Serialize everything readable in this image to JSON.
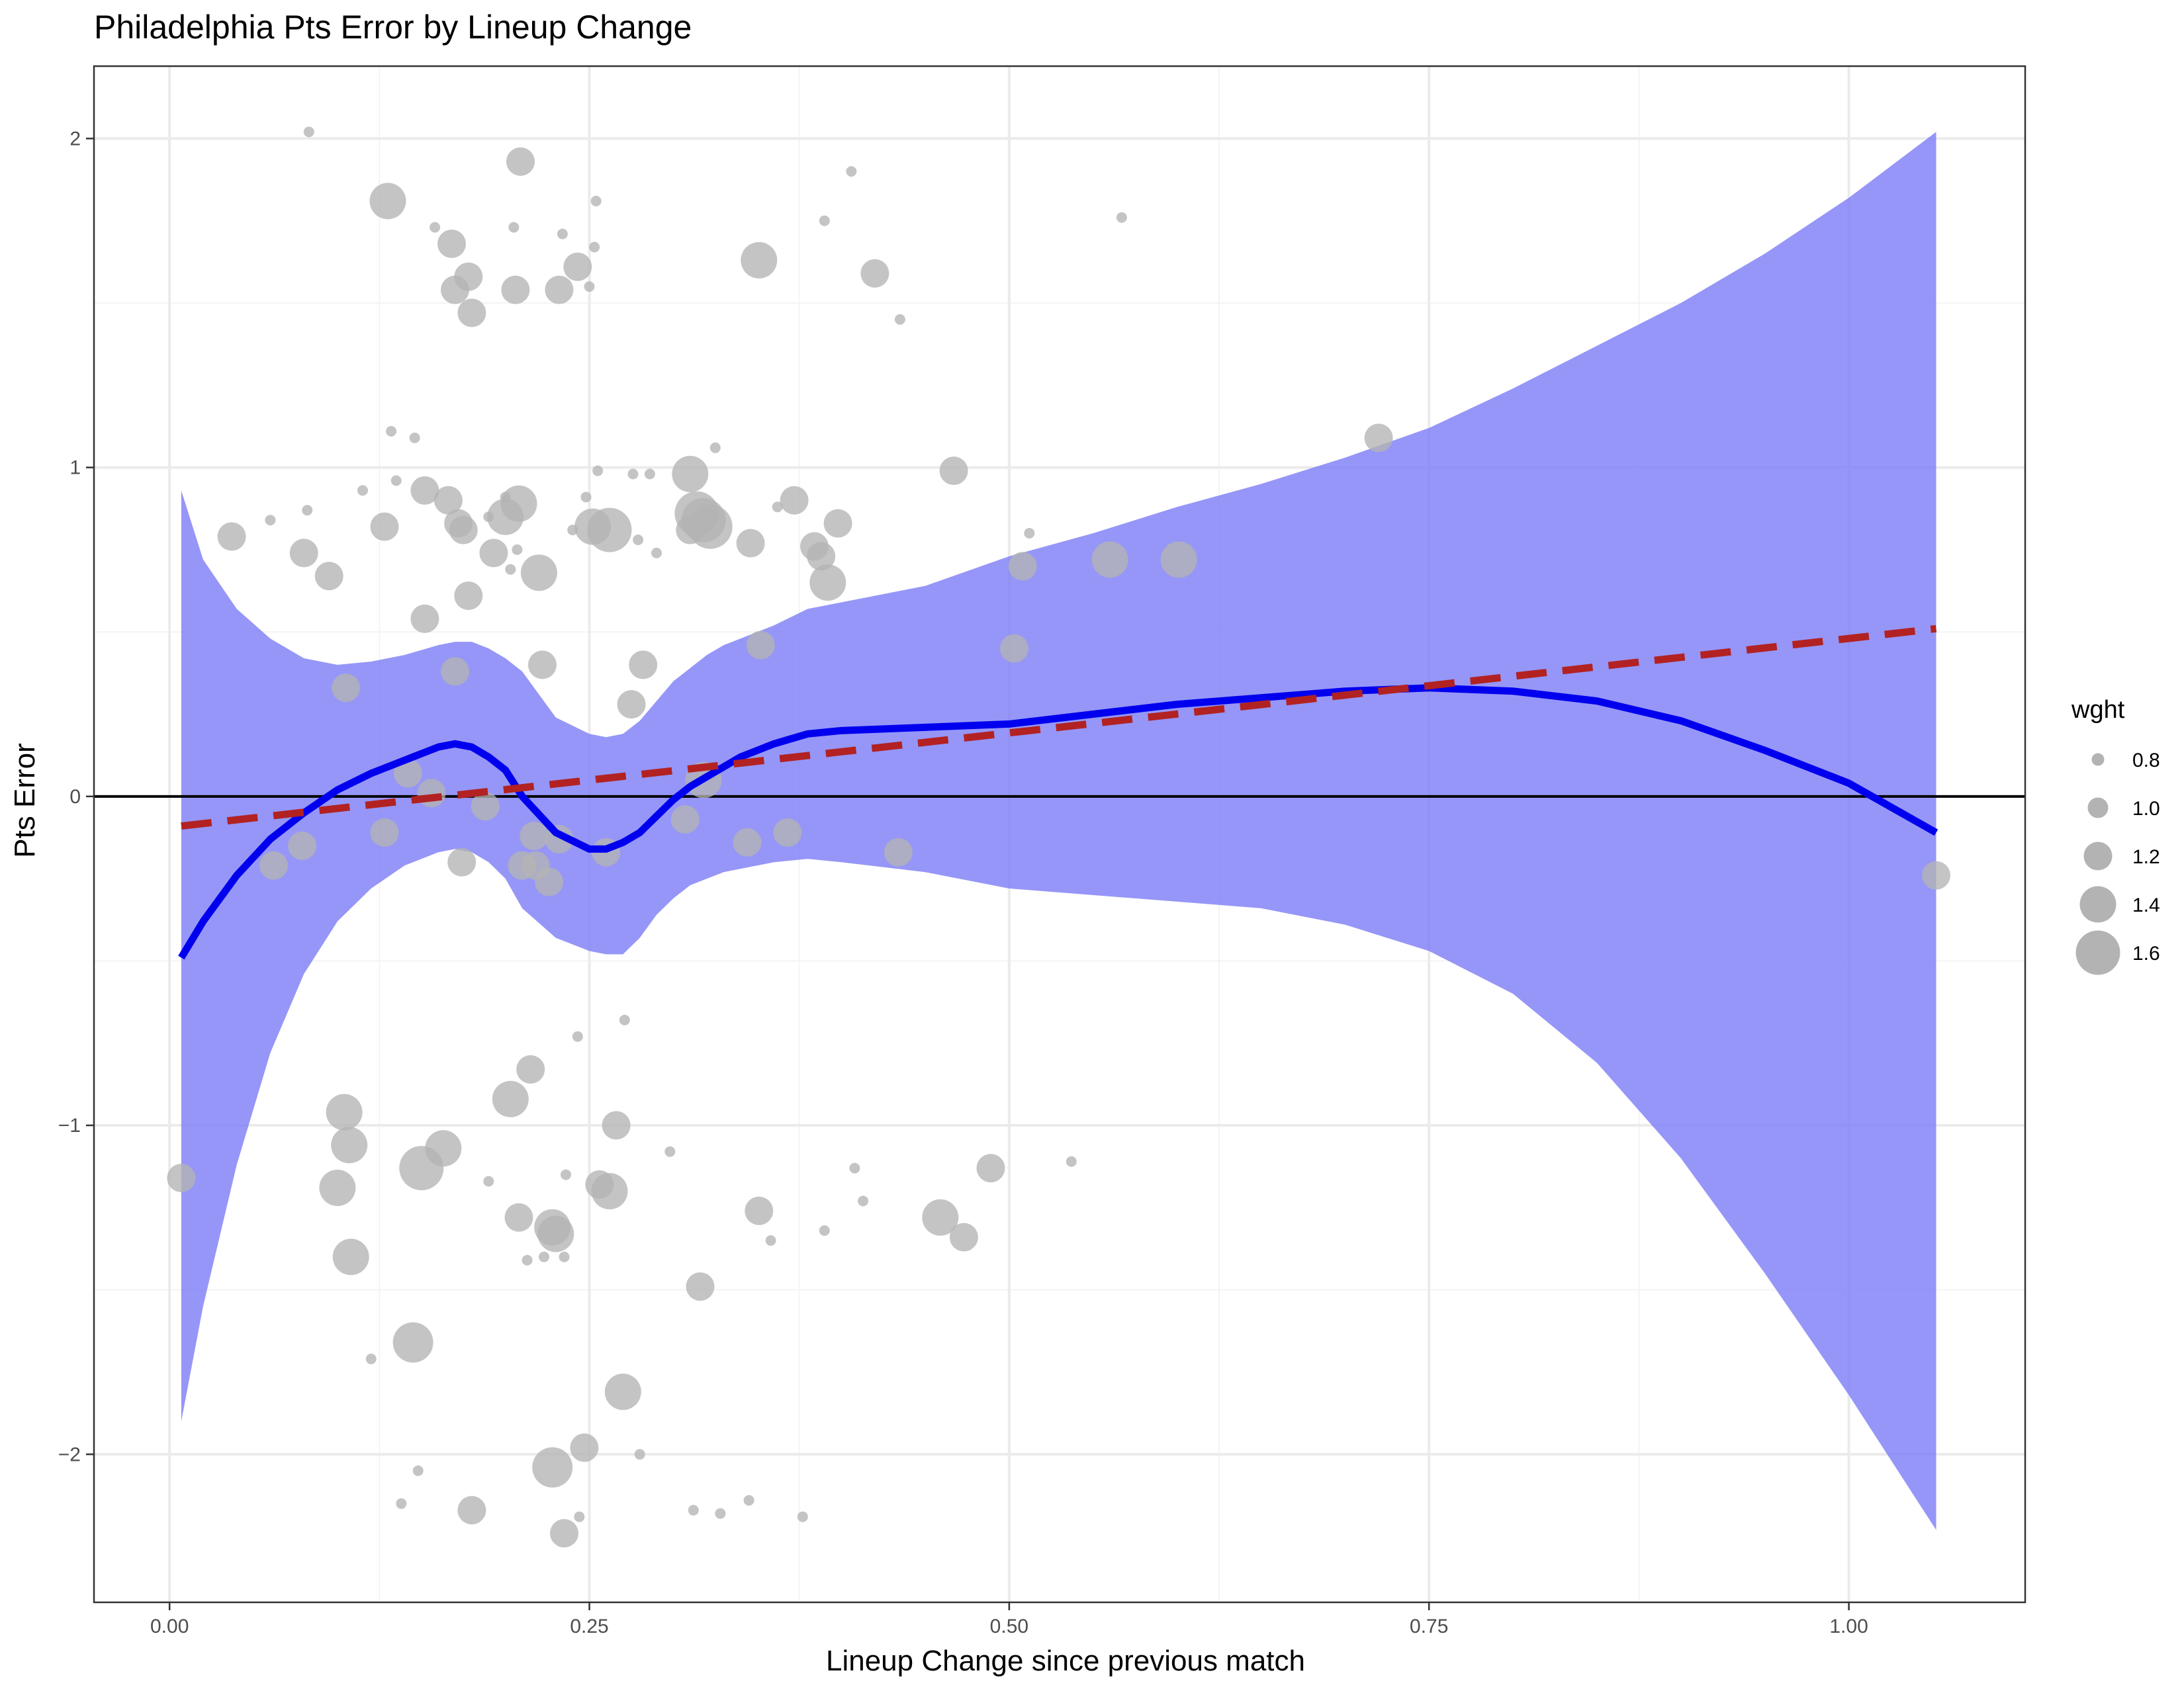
{
  "chart_data": {
    "type": "scatter",
    "title": "Philadelphia Pts Error by Lineup Change",
    "xlabel": "Lineup Change since previous match",
    "ylabel": "Pts Error",
    "xlim": [
      -0.045,
      1.105
    ],
    "ylim": [
      -2.45,
      2.22
    ],
    "x_ticks": [
      0.0,
      0.25,
      0.5,
      0.75,
      1.0
    ],
    "x_tick_labels": [
      "0.00",
      "0.25",
      "0.50",
      "0.75",
      "1.00"
    ],
    "y_ticks": [
      -2,
      -1,
      0,
      1,
      2
    ],
    "y_tick_labels": [
      "−2",
      "−1",
      "0",
      "1",
      "2"
    ],
    "grid": true,
    "reference_line_y": 0,
    "legend": {
      "title": "wght",
      "position": "right",
      "entries": [
        {
          "label": "0.8",
          "size": 0.8
        },
        {
          "label": "1.0",
          "size": 1.0
        },
        {
          "label": "1.2",
          "size": 1.2
        },
        {
          "label": "1.4",
          "size": 1.4
        },
        {
          "label": "1.6",
          "size": 1.6
        }
      ]
    },
    "colors": {
      "points": "#b3b3b3",
      "smooth_line": "#0000ee",
      "confidence_band": "#7878f6",
      "linear_fit": "#b22222",
      "zero_line": "#000000",
      "grid_major": "#ebebeb",
      "grid_minor": "#f4f4f4"
    },
    "points": [
      {
        "x": 0.007,
        "y": -1.16,
        "w": 1.2
      },
      {
        "x": 0.037,
        "y": 0.79,
        "w": 1.2
      },
      {
        "x": 0.062,
        "y": -0.21,
        "w": 1.2
      },
      {
        "x": 0.06,
        "y": 0.84,
        "w": 0.75
      },
      {
        "x": 0.08,
        "y": 0.74,
        "w": 1.2
      },
      {
        "x": 0.082,
        "y": 0.87,
        "w": 0.75
      },
      {
        "x": 0.083,
        "y": 2.02,
        "w": 0.75
      },
      {
        "x": 0.079,
        "y": -0.15,
        "w": 1.2
      },
      {
        "x": 0.095,
        "y": 0.67,
        "w": 1.2
      },
      {
        "x": 0.1,
        "y": -1.19,
        "w": 1.4
      },
      {
        "x": 0.104,
        "y": -0.96,
        "w": 1.4
      },
      {
        "x": 0.105,
        "y": 0.33,
        "w": 1.2
      },
      {
        "x": 0.107,
        "y": -1.06,
        "w": 1.4
      },
      {
        "x": 0.108,
        "y": -1.4,
        "w": 1.4
      },
      {
        "x": 0.115,
        "y": 0.93,
        "w": 0.75
      },
      {
        "x": 0.12,
        "y": -1.71,
        "w": 0.75
      },
      {
        "x": 0.128,
        "y": -0.11,
        "w": 1.2
      },
      {
        "x": 0.128,
        "y": 0.82,
        "w": 1.2
      },
      {
        "x": 0.13,
        "y": 1.81,
        "w": 1.4
      },
      {
        "x": 0.132,
        "y": 1.11,
        "w": 0.75
      },
      {
        "x": 0.135,
        "y": 0.96,
        "w": 0.75
      },
      {
        "x": 0.138,
        "y": -2.15,
        "w": 0.75
      },
      {
        "x": 0.142,
        "y": 0.07,
        "w": 1.2
      },
      {
        "x": 0.145,
        "y": -1.66,
        "w": 1.5
      },
      {
        "x": 0.146,
        "y": 1.09,
        "w": 0.75
      },
      {
        "x": 0.148,
        "y": -2.05,
        "w": 0.75
      },
      {
        "x": 0.15,
        "y": -1.13,
        "w": 1.6
      },
      {
        "x": 0.152,
        "y": 0.93,
        "w": 1.2
      },
      {
        "x": 0.152,
        "y": 0.54,
        "w": 1.2
      },
      {
        "x": 0.156,
        "y": 0.01,
        "w": 1.2
      },
      {
        "x": 0.158,
        "y": 1.73,
        "w": 0.75
      },
      {
        "x": 0.163,
        "y": -1.07,
        "w": 1.4
      },
      {
        "x": 0.166,
        "y": 0.9,
        "w": 1.2
      },
      {
        "x": 0.168,
        "y": 1.68,
        "w": 1.2
      },
      {
        "x": 0.17,
        "y": 1.54,
        "w": 1.2
      },
      {
        "x": 0.17,
        "y": 0.38,
        "w": 1.2
      },
      {
        "x": 0.172,
        "y": 0.83,
        "w": 1.2
      },
      {
        "x": 0.174,
        "y": -0.2,
        "w": 1.2
      },
      {
        "x": 0.175,
        "y": 0.81,
        "w": 1.2
      },
      {
        "x": 0.178,
        "y": 1.58,
        "w": 1.2
      },
      {
        "x": 0.178,
        "y": 0.61,
        "w": 1.2
      },
      {
        "x": 0.18,
        "y": 1.47,
        "w": 1.2
      },
      {
        "x": 0.18,
        "y": -2.17,
        "w": 1.2
      },
      {
        "x": 0.188,
        "y": -0.03,
        "w": 1.2
      },
      {
        "x": 0.19,
        "y": -1.17,
        "w": 0.75
      },
      {
        "x": 0.19,
        "y": 0.85,
        "w": 0.75
      },
      {
        "x": 0.193,
        "y": 0.74,
        "w": 1.2
      },
      {
        "x": 0.2,
        "y": 0.91,
        "w": 0.75
      },
      {
        "x": 0.2,
        "y": 0.85,
        "w": 1.4
      },
      {
        "x": 0.203,
        "y": -0.92,
        "w": 1.4
      },
      {
        "x": 0.203,
        "y": 0.69,
        "w": 0.75
      },
      {
        "x": 0.205,
        "y": 1.73,
        "w": 0.75
      },
      {
        "x": 0.206,
        "y": 1.54,
        "w": 1.2
      },
      {
        "x": 0.207,
        "y": 0.75,
        "w": 0.75
      },
      {
        "x": 0.208,
        "y": 0.89,
        "w": 1.4
      },
      {
        "x": 0.208,
        "y": -1.28,
        "w": 1.2
      },
      {
        "x": 0.21,
        "y": -0.21,
        "w": 1.2
      },
      {
        "x": 0.209,
        "y": 1.93,
        "w": 1.2
      },
      {
        "x": 0.213,
        "y": -1.41,
        "w": 0.75
      },
      {
        "x": 0.215,
        "y": -0.83,
        "w": 1.2
      },
      {
        "x": 0.217,
        "y": -0.12,
        "w": 1.2
      },
      {
        "x": 0.218,
        "y": -0.21,
        "w": 1.2
      },
      {
        "x": 0.22,
        "y": 0.68,
        "w": 1.4
      },
      {
        "x": 0.222,
        "y": 0.4,
        "w": 1.2
      },
      {
        "x": 0.223,
        "y": -1.4,
        "w": 0.75
      },
      {
        "x": 0.226,
        "y": -0.26,
        "w": 1.2
      },
      {
        "x": 0.228,
        "y": -2.04,
        "w": 1.5
      },
      {
        "x": 0.228,
        "y": -1.31,
        "w": 1.4
      },
      {
        "x": 0.23,
        "y": -1.33,
        "w": 1.4
      },
      {
        "x": 0.232,
        "y": 1.54,
        "w": 1.2
      },
      {
        "x": 0.232,
        "y": -0.13,
        "w": 1.2
      },
      {
        "x": 0.234,
        "y": 1.71,
        "w": 0.75
      },
      {
        "x": 0.235,
        "y": -1.4,
        "w": 0.75
      },
      {
        "x": 0.235,
        "y": -2.24,
        "w": 1.2
      },
      {
        "x": 0.236,
        "y": -1.15,
        "w": 0.75
      },
      {
        "x": 0.24,
        "y": 0.81,
        "w": 0.75
      },
      {
        "x": 0.243,
        "y": 1.61,
        "w": 1.2
      },
      {
        "x": 0.243,
        "y": -0.73,
        "w": 0.75
      },
      {
        "x": 0.244,
        "y": -2.19,
        "w": 0.75
      },
      {
        "x": 0.247,
        "y": -1.98,
        "w": 1.2
      },
      {
        "x": 0.248,
        "y": 0.91,
        "w": 0.75
      },
      {
        "x": 0.25,
        "y": 1.55,
        "w": 0.75
      },
      {
        "x": 0.252,
        "y": 0.82,
        "w": 1.4
      },
      {
        "x": 0.253,
        "y": 1.67,
        "w": 0.75
      },
      {
        "x": 0.254,
        "y": 1.81,
        "w": 0.75
      },
      {
        "x": 0.255,
        "y": 0.99,
        "w": 0.75
      },
      {
        "x": 0.256,
        "y": -1.18,
        "w": 1.2
      },
      {
        "x": 0.26,
        "y": -0.17,
        "w": 1.2
      },
      {
        "x": 0.262,
        "y": 0.81,
        "w": 1.6
      },
      {
        "x": 0.262,
        "y": -1.2,
        "w": 1.4
      },
      {
        "x": 0.266,
        "y": -1.0,
        "w": 1.2
      },
      {
        "x": 0.27,
        "y": -1.81,
        "w": 1.4
      },
      {
        "x": 0.271,
        "y": -0.68,
        "w": 0.75
      },
      {
        "x": 0.275,
        "y": 0.28,
        "w": 1.2
      },
      {
        "x": 0.276,
        "y": 0.98,
        "w": 0.75
      },
      {
        "x": 0.279,
        "y": 0.78,
        "w": 0.75
      },
      {
        "x": 0.28,
        "y": -2.0,
        "w": 0.75
      },
      {
        "x": 0.282,
        "y": 0.4,
        "w": 1.2
      },
      {
        "x": 0.286,
        "y": 0.98,
        "w": 0.75
      },
      {
        "x": 0.29,
        "y": 0.74,
        "w": 0.75
      },
      {
        "x": 0.298,
        "y": -1.08,
        "w": 0.75
      },
      {
        "x": 0.307,
        "y": -0.07,
        "w": 1.2
      },
      {
        "x": 0.31,
        "y": 0.98,
        "w": 1.4
      },
      {
        "x": 0.31,
        "y": 0.81,
        "w": 1.2
      },
      {
        "x": 0.312,
        "y": -2.17,
        "w": 0.75
      },
      {
        "x": 0.314,
        "y": 0.86,
        "w": 1.6
      },
      {
        "x": 0.316,
        "y": -1.49,
        "w": 1.2
      },
      {
        "x": 0.318,
        "y": 0.84,
        "w": 1.6
      },
      {
        "x": 0.318,
        "y": 0.05,
        "w": 1.4
      },
      {
        "x": 0.322,
        "y": 0.82,
        "w": 1.6
      },
      {
        "x": 0.325,
        "y": 1.06,
        "w": 0.75
      },
      {
        "x": 0.328,
        "y": -2.18,
        "w": 0.75
      },
      {
        "x": 0.344,
        "y": -0.14,
        "w": 1.2
      },
      {
        "x": 0.345,
        "y": -2.14,
        "w": 0.75
      },
      {
        "x": 0.346,
        "y": 0.77,
        "w": 1.2
      },
      {
        "x": 0.351,
        "y": -1.26,
        "w": 1.2
      },
      {
        "x": 0.352,
        "y": 0.46,
        "w": 1.2
      },
      {
        "x": 0.351,
        "y": 1.63,
        "w": 1.4
      },
      {
        "x": 0.358,
        "y": -1.35,
        "w": 0.75
      },
      {
        "x": 0.362,
        "y": 0.88,
        "w": 0.75
      },
      {
        "x": 0.368,
        "y": -0.11,
        "w": 1.2
      },
      {
        "x": 0.372,
        "y": 0.9,
        "w": 1.2
      },
      {
        "x": 0.377,
        "y": -2.19,
        "w": 0.75
      },
      {
        "x": 0.384,
        "y": 0.76,
        "w": 1.2
      },
      {
        "x": 0.388,
        "y": 0.73,
        "w": 1.2
      },
      {
        "x": 0.39,
        "y": -1.32,
        "w": 0.75
      },
      {
        "x": 0.39,
        "y": 1.75,
        "w": 0.75
      },
      {
        "x": 0.392,
        "y": 0.65,
        "w": 1.4
      },
      {
        "x": 0.398,
        "y": 0.83,
        "w": 1.2
      },
      {
        "x": 0.406,
        "y": 1.9,
        "w": 0.75
      },
      {
        "x": 0.408,
        "y": -1.13,
        "w": 0.75
      },
      {
        "x": 0.413,
        "y": -1.23,
        "w": 0.75
      },
      {
        "x": 0.42,
        "y": 1.59,
        "w": 1.2
      },
      {
        "x": 0.434,
        "y": -0.17,
        "w": 1.2
      },
      {
        "x": 0.435,
        "y": 1.45,
        "w": 0.75
      },
      {
        "x": 0.459,
        "y": -1.28,
        "w": 1.4
      },
      {
        "x": 0.467,
        "y": 0.99,
        "w": 1.2
      },
      {
        "x": 0.473,
        "y": -1.34,
        "w": 1.2
      },
      {
        "x": 0.489,
        "y": -1.13,
        "w": 1.2
      },
      {
        "x": 0.503,
        "y": 0.45,
        "w": 1.2
      },
      {
        "x": 0.508,
        "y": 0.7,
        "w": 1.2
      },
      {
        "x": 0.512,
        "y": 0.8,
        "w": 0.75
      },
      {
        "x": 0.537,
        "y": -1.11,
        "w": 0.75
      },
      {
        "x": 0.56,
        "y": 0.72,
        "w": 1.4
      },
      {
        "x": 0.567,
        "y": 1.76,
        "w": 0.75
      },
      {
        "x": 0.601,
        "y": 0.72,
        "w": 1.4
      },
      {
        "x": 0.72,
        "y": 1.09,
        "w": 1.2
      },
      {
        "x": 1.052,
        "y": -0.24,
        "w": 1.2
      }
    ],
    "smooth_fit": {
      "x": [
        0.007,
        0.02,
        0.04,
        0.06,
        0.08,
        0.1,
        0.12,
        0.14,
        0.16,
        0.17,
        0.18,
        0.19,
        0.2,
        0.21,
        0.23,
        0.25,
        0.26,
        0.27,
        0.28,
        0.29,
        0.3,
        0.31,
        0.32,
        0.33,
        0.34,
        0.36,
        0.38,
        0.4,
        0.45,
        0.5,
        0.55,
        0.6,
        0.65,
        0.7,
        0.75,
        0.8,
        0.85,
        0.9,
        0.95,
        1.0,
        1.052
      ],
      "y": [
        -0.49,
        -0.38,
        -0.24,
        -0.13,
        -0.05,
        0.02,
        0.07,
        0.11,
        0.15,
        0.16,
        0.15,
        0.12,
        0.08,
        0.0,
        -0.11,
        -0.16,
        -0.16,
        -0.14,
        -0.11,
        -0.06,
        -0.01,
        0.03,
        0.06,
        0.09,
        0.12,
        0.16,
        0.19,
        0.2,
        0.21,
        0.22,
        0.25,
        0.28,
        0.3,
        0.32,
        0.33,
        0.32,
        0.29,
        0.23,
        0.14,
        0.04,
        -0.11
      ],
      "ci_upper": [
        0.93,
        0.72,
        0.57,
        0.48,
        0.42,
        0.4,
        0.41,
        0.43,
        0.46,
        0.47,
        0.47,
        0.45,
        0.42,
        0.38,
        0.24,
        0.19,
        0.18,
        0.19,
        0.23,
        0.29,
        0.35,
        0.39,
        0.43,
        0.46,
        0.48,
        0.52,
        0.57,
        0.59,
        0.64,
        0.73,
        0.8,
        0.88,
        0.95,
        1.03,
        1.12,
        1.24,
        1.37,
        1.5,
        1.65,
        1.82,
        2.02
      ],
      "ci_lower": [
        -1.9,
        -1.55,
        -1.12,
        -0.78,
        -0.54,
        -0.38,
        -0.28,
        -0.21,
        -0.17,
        -0.16,
        -0.17,
        -0.2,
        -0.25,
        -0.34,
        -0.43,
        -0.47,
        -0.48,
        -0.48,
        -0.43,
        -0.36,
        -0.31,
        -0.27,
        -0.25,
        -0.23,
        -0.22,
        -0.2,
        -0.19,
        -0.2,
        -0.23,
        -0.28,
        -0.3,
        -0.32,
        -0.34,
        -0.39,
        -0.47,
        -0.6,
        -0.81,
        -1.1,
        -1.45,
        -1.82,
        -2.23
      ]
    },
    "linear_fit": {
      "x": [
        0.007,
        1.052
      ],
      "y": [
        -0.09,
        0.51
      ]
    }
  }
}
